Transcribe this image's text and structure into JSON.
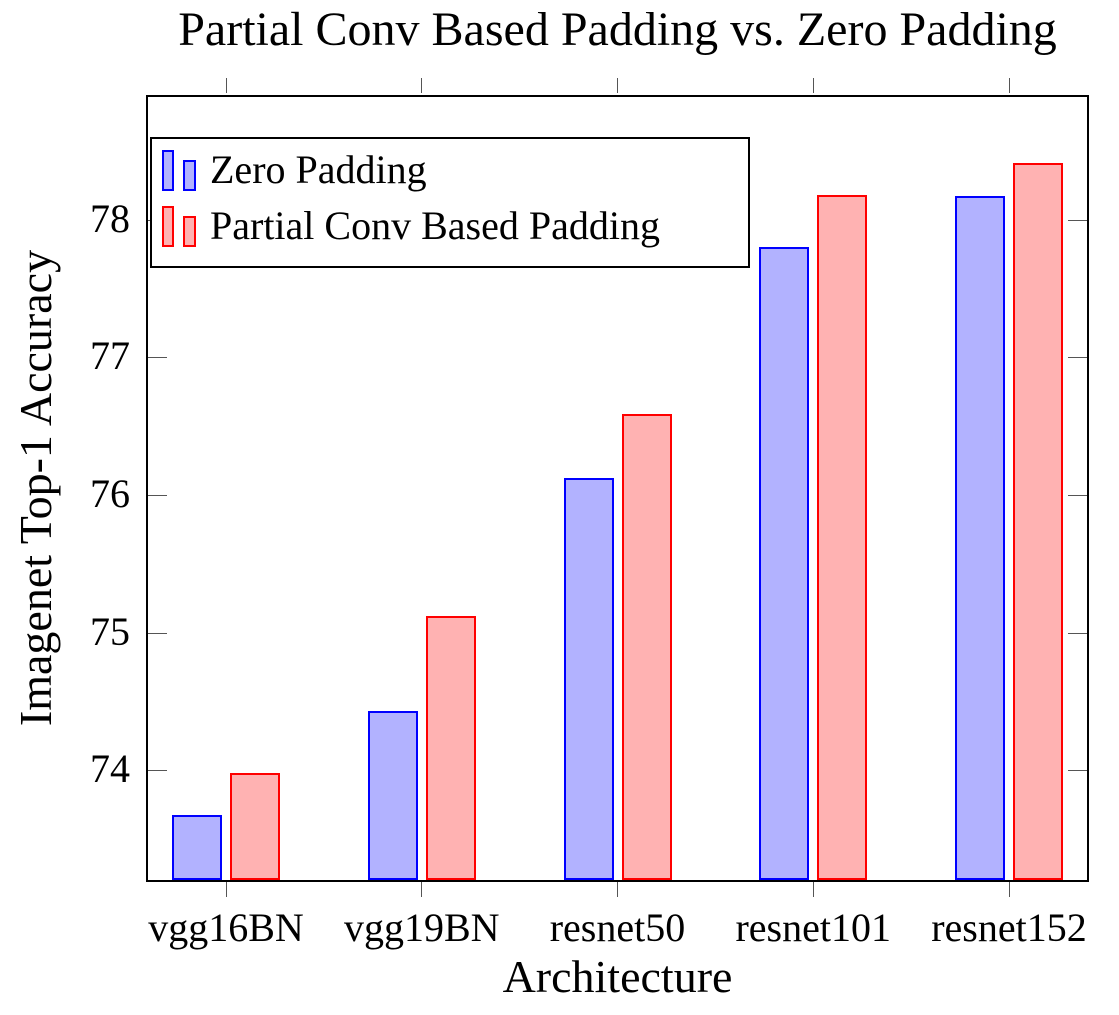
{
  "chart_data": {
    "type": "bar",
    "title": "Partial Conv Based Padding vs. Zero Padding",
    "xlabel": "Architecture",
    "ylabel": "Imagenet Top-1 Accuracy",
    "categories": [
      "vgg16BN",
      "vgg19BN",
      "resnet50",
      "resnet101",
      "resnet152"
    ],
    "series": [
      {
        "name": "Zero Padding",
        "color": "#0000ff",
        "fill": "#b2b2ff",
        "values": [
          73.68,
          74.44,
          76.13,
          77.81,
          78.18
        ]
      },
      {
        "name": "Partial Conv Based Padding",
        "color": "#ff0000",
        "fill": "#ffb2b2",
        "values": [
          73.99,
          75.13,
          76.6,
          78.19,
          78.42
        ]
      }
    ],
    "yticks": [
      "74",
      "75",
      "76",
      "77",
      "78"
    ],
    "ylim": [
      73.21,
      78.9
    ],
    "legend_position": "top-left",
    "grid": false,
    "axis_color": "#000000"
  }
}
